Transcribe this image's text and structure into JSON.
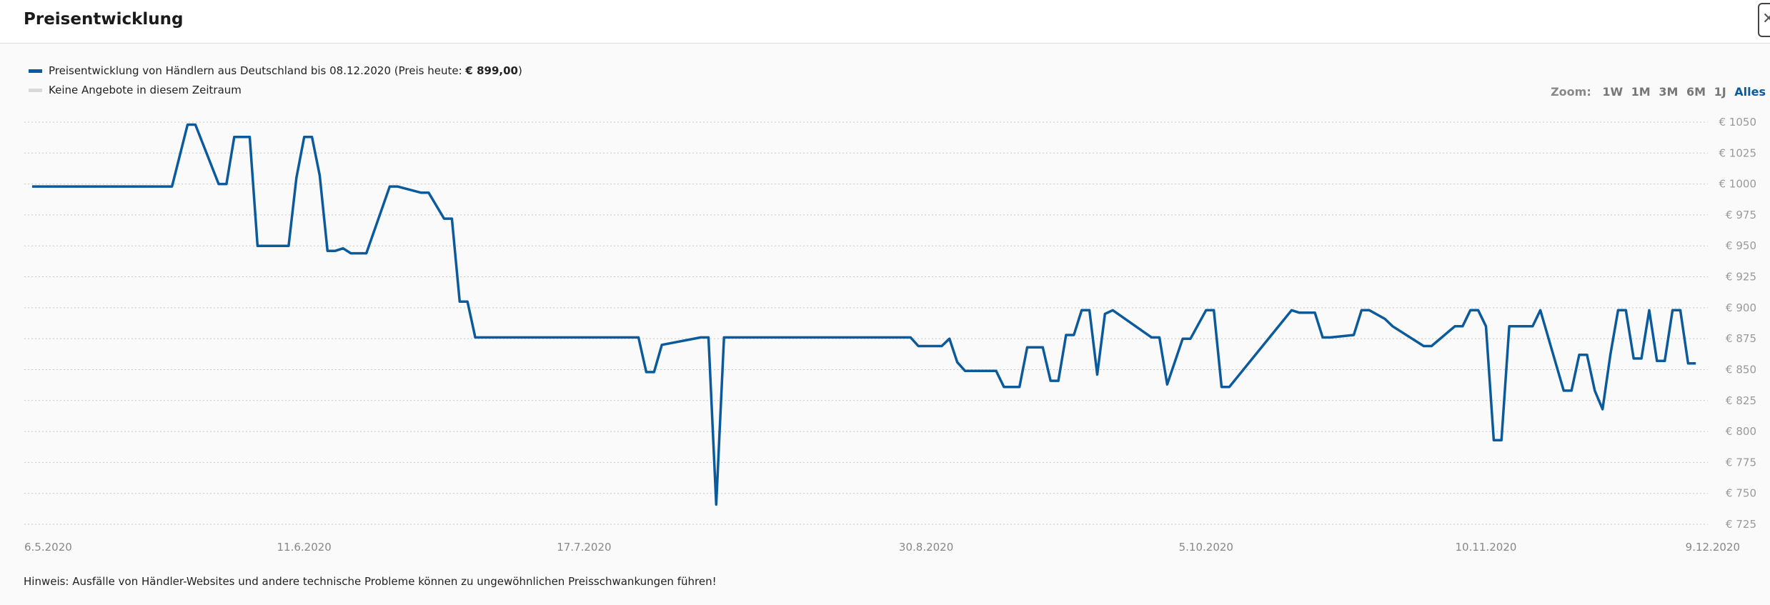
{
  "header": {
    "title": "Preisentwicklung"
  },
  "legend": [
    {
      "prefix": "Preisentwicklung von Händlern aus Deutschland bis 08.12.2020 (Preis heute: ",
      "bold": "€ 899,00",
      "suffix": ")",
      "color": "#0a5a9c"
    },
    {
      "prefix": "Keine Angebote in diesem Zeitraum",
      "bold": "",
      "suffix": "",
      "color": "#d9d9d9"
    }
  ],
  "zoom": {
    "label": "Zoom:",
    "options": [
      "1W",
      "1M",
      "3M",
      "6M",
      "1J",
      "Alles"
    ],
    "active": "Alles"
  },
  "note": "Hinweis: Ausfälle von Händler-Websites und andere technische Probleme können zu ungewöhnlichen Preisschwankungen führen!",
  "chart_data": {
    "type": "line",
    "title": "",
    "xlabel": "",
    "ylabel": "",
    "ylim": [
      725,
      1050
    ],
    "xlim": [
      "2020-05-06",
      "2020-12-09"
    ],
    "y_ticks": [
      725,
      750,
      775,
      800,
      825,
      850,
      875,
      900,
      925,
      950,
      975,
      1000,
      1025,
      1050
    ],
    "y_tick_labels": [
      "€ 725",
      "€ 750",
      "€ 775",
      "€ 800",
      "€ 825",
      "€ 850",
      "€ 875",
      "€ 900",
      "€ 925",
      "€ 950",
      "€ 975",
      "€ 1000",
      "€ 1025",
      "€ 1050"
    ],
    "x_ticks": [
      "2020-05-06",
      "2020-06-11",
      "2020-07-17",
      "2020-08-30",
      "2020-10-05",
      "2020-11-10",
      "2020-12-09"
    ],
    "x_tick_labels": [
      "6.5.2020",
      "11.6.2020",
      "17.7.2020",
      "30.8.2020",
      "5.10.2020",
      "10.11.2020",
      "9.12.2020"
    ],
    "grid": true,
    "legend_position": "top-left",
    "series": [
      {
        "color": "#0a5a9c",
        "x": [
          "2020-05-07",
          "2020-05-25",
          "2020-05-27",
          "2020-05-28",
          "2020-05-31",
          "2020-06-01",
          "2020-06-02",
          "2020-06-04",
          "2020-06-05",
          "2020-06-09",
          "2020-06-10",
          "2020-06-11",
          "2020-06-12",
          "2020-06-13",
          "2020-06-14",
          "2020-06-15",
          "2020-06-16",
          "2020-06-17",
          "2020-06-18",
          "2020-06-19",
          "2020-06-22",
          "2020-06-23",
          "2020-06-26",
          "2020-06-27",
          "2020-06-29",
          "2020-06-30",
          "2020-07-01",
          "2020-07-02",
          "2020-07-03",
          "2020-07-04",
          "2020-07-24",
          "2020-07-25",
          "2020-07-26",
          "2020-07-27",
          "2020-08-01",
          "2020-08-02",
          "2020-08-03",
          "2020-08-04",
          "2020-08-28",
          "2020-08-29",
          "2020-09-01",
          "2020-09-02",
          "2020-09-03",
          "2020-09-04",
          "2020-09-08",
          "2020-09-09",
          "2020-09-11",
          "2020-09-12",
          "2020-09-14",
          "2020-09-15",
          "2020-09-16",
          "2020-09-17",
          "2020-09-18",
          "2020-09-19",
          "2020-09-20",
          "2020-09-21",
          "2020-09-22",
          "2020-09-23",
          "2020-09-28",
          "2020-09-29",
          "2020-09-30",
          "2020-10-02",
          "2020-10-03",
          "2020-10-05",
          "2020-10-06",
          "2020-10-07",
          "2020-10-08",
          "2020-10-16",
          "2020-10-17",
          "2020-10-19",
          "2020-10-20",
          "2020-10-21",
          "2020-10-24",
          "2020-10-25",
          "2020-10-26",
          "2020-10-28",
          "2020-10-29",
          "2020-11-02",
          "2020-11-03",
          "2020-11-06",
          "2020-11-07",
          "2020-11-08",
          "2020-11-09",
          "2020-11-10",
          "2020-11-11",
          "2020-11-12",
          "2020-11-13",
          "2020-11-16",
          "2020-11-17",
          "2020-11-20",
          "2020-11-21",
          "2020-11-22",
          "2020-11-23",
          "2020-11-24",
          "2020-11-25",
          "2020-11-26",
          "2020-11-27",
          "2020-11-28",
          "2020-11-29",
          "2020-11-30",
          "2020-12-01",
          "2020-12-02",
          "2020-12-03",
          "2020-12-04",
          "2020-12-05",
          "2020-12-06",
          "2020-12-07"
        ],
        "values": [
          998,
          998,
          1048,
          1048,
          1000,
          1000,
          1038,
          1038,
          950,
          950,
          1005,
          1038,
          1038,
          1007,
          946,
          946,
          948,
          944,
          944,
          944,
          998,
          998,
          993,
          993,
          972,
          972,
          905,
          905,
          876,
          876,
          876,
          848,
          848,
          870,
          876,
          876,
          741,
          876,
          876,
          869,
          869,
          875,
          856,
          849,
          849,
          836,
          836,
          868,
          868,
          841,
          841,
          878,
          878,
          898,
          898,
          846,
          895,
          898,
          876,
          876,
          838,
          875,
          875,
          898,
          898,
          836,
          836,
          898,
          896,
          896,
          876,
          876,
          878,
          898,
          898,
          891,
          885,
          869,
          869,
          885,
          885,
          898,
          898,
          885,
          793,
          793,
          885,
          885,
          898,
          833,
          833,
          862,
          862,
          833,
          818,
          862,
          898,
          898,
          859,
          859,
          898,
          857,
          857,
          898,
          898,
          855,
          855
        ]
      }
    ]
  }
}
